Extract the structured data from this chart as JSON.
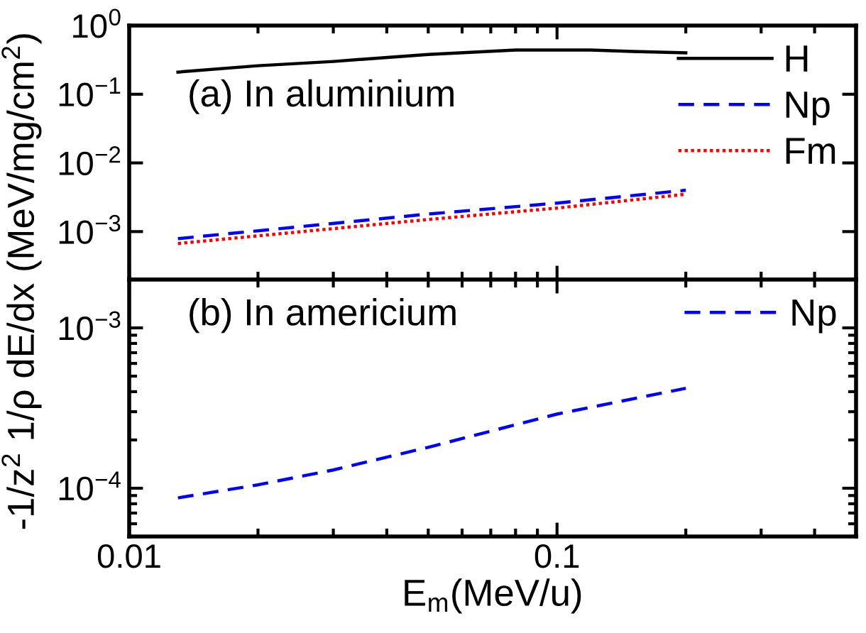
{
  "chart_data": [
    {
      "type": "line",
      "ylabel": "-1/z$^{2}$ 1/ρ dE/dx (MeV/mg/cm$^{2}$)",
      "log": "xy",
      "xlim": [
        0.01,
        0.5
      ],
      "ylim": [
        0.0002,
        1
      ],
      "yticks": [
        {
          "value": 0.001,
          "label": "10$^{−3}$"
        },
        {
          "value": 0.01,
          "label": "10$^{−2}$"
        },
        {
          "value": 0.1,
          "label": "10$^{−1}$"
        },
        {
          "value": 1,
          "label": "10$^{0}$"
        }
      ],
      "tick_labels": "y",
      "legend": "top right",
      "annotations": [
        "(a) In aluminium"
      ],
      "series": [
        {
          "name": "H",
          "color": "#000000",
          "line_style": "solid",
          "x": [
            0.013,
            0.02,
            0.03,
            0.05,
            0.08,
            0.1,
            0.12,
            0.15,
            0.2
          ],
          "values": [
            0.21,
            0.26,
            0.3,
            0.38,
            0.44,
            0.44,
            0.44,
            0.42,
            0.4
          ]
        },
        {
          "name": "Np",
          "color": "#0000ff",
          "line_style": "dashed",
          "x": [
            0.013,
            0.05,
            0.1,
            0.2
          ],
          "values": [
            0.00079,
            0.0018,
            0.0026,
            0.004
          ]
        },
        {
          "name": "Fm",
          "color": "#ff0000",
          "line_style": "dotted",
          "x": [
            0.013,
            0.05,
            0.1,
            0.2
          ],
          "values": [
            0.00067,
            0.0015,
            0.0022,
            0.0035
          ]
        }
      ]
    },
    {
      "type": "line",
      "xlabel": "E$_{m}$(MeV/u)",
      "log": "xy",
      "xlim": [
        0.01,
        0.5
      ],
      "xticks": [
        0.01,
        0.1
      ],
      "ylim": [
        5e-05,
        0.002
      ],
      "yticks": [
        {
          "value": 0.0001,
          "label": "10$^{−4}$"
        },
        {
          "value": 0.001,
          "label": "10$^{−3}$"
        }
      ],
      "legend": "top right",
      "annotations": [
        "(b) In americium"
      ],
      "series": [
        {
          "name": "Np",
          "color": "#0000ff",
          "line_style": "dashed",
          "x": [
            0.013,
            0.02,
            0.03,
            0.05,
            0.1,
            0.2
          ],
          "values": [
            8.7e-05,
            0.000105,
            0.00013,
            0.00018,
            0.00029,
            0.00042
          ]
        }
      ]
    }
  ]
}
